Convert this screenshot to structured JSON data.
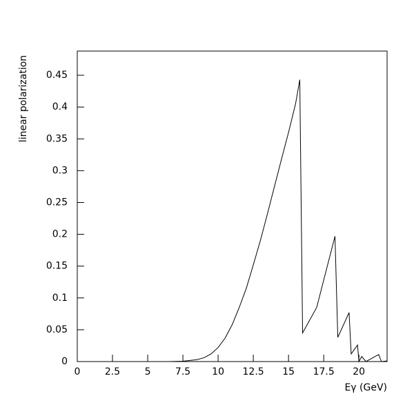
{
  "chart_data": {
    "type": "line",
    "x_label": "Eγ (GeV)",
    "y_label": "linear polarization",
    "xlim": [
      0,
      22
    ],
    "ylim": [
      0,
      0.488
    ],
    "xticks": [
      0,
      2.5,
      5,
      7.5,
      10,
      12.5,
      15,
      17.5,
      20
    ],
    "yticks": [
      0,
      0.05,
      0.1,
      0.15,
      0.2,
      0.25,
      0.3,
      0.35,
      0.4,
      0.45
    ],
    "series": [
      {
        "color": "#000000",
        "x": [
          6.5,
          7.5,
          8.5,
          9,
          9.5,
          10,
          10.5,
          11,
          11.5,
          12,
          12.5,
          13,
          13.5,
          14,
          14.5,
          15,
          15.5,
          15.8,
          16.0,
          17.0,
          18.3,
          18.5,
          19.3,
          19.45,
          19.9,
          20.0,
          20.2,
          20.5,
          21.4,
          21.6,
          22
        ],
        "values": [
          0,
          0.0005,
          0.003,
          0.006,
          0.012,
          0.022,
          0.037,
          0.058,
          0.085,
          0.115,
          0.152,
          0.19,
          0.232,
          0.275,
          0.318,
          0.36,
          0.405,
          0.443,
          0.045,
          0.085,
          0.197,
          0.038,
          0.077,
          0.012,
          0.026,
          0,
          0.008,
          0,
          0.011,
          0,
          0.001
        ]
      }
    ]
  }
}
